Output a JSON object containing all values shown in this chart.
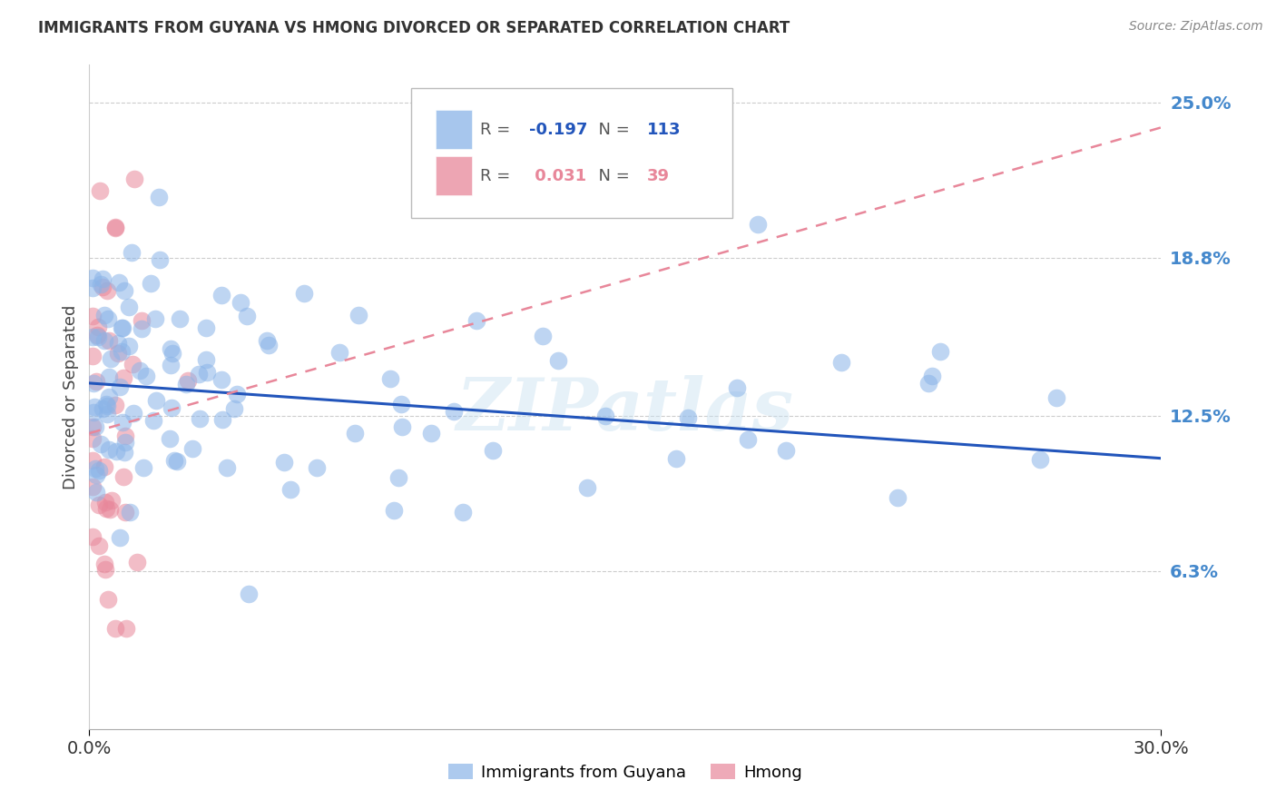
{
  "title": "IMMIGRANTS FROM GUYANA VS HMONG DIVORCED OR SEPARATED CORRELATION CHART",
  "source": "Source: ZipAtlas.com",
  "ylabel": "Divorced or Separated",
  "x_tick_labels": [
    "0.0%",
    "30.0%"
  ],
  "y_tick_labels": [
    "6.3%",
    "12.5%",
    "18.8%",
    "25.0%"
  ],
  "y_tick_values": [
    0.063,
    0.125,
    0.188,
    0.25
  ],
  "x_min": 0.0,
  "x_max": 0.3,
  "y_min": 0.0,
  "y_max": 0.265,
  "legend_label1": "Immigrants from Guyana",
  "legend_label2": "Hmong",
  "legend_r1": "-0.197",
  "legend_n1": "113",
  "legend_r2": "0.031",
  "legend_n2": "39",
  "watermark": "ZIPatlas",
  "blue_color": "#8ab4e8",
  "pink_color": "#e8879a",
  "blue_line_color": "#2255bb",
  "pink_line_color": "#e8879a",
  "background_color": "#ffffff",
  "title_color": "#333333",
  "source_color": "#888888",
  "right_label_color": "#4488cc",
  "blue_line_start_y": 0.138,
  "blue_line_end_y": 0.108,
  "pink_line_start_y": 0.118,
  "pink_line_end_y": 0.24
}
